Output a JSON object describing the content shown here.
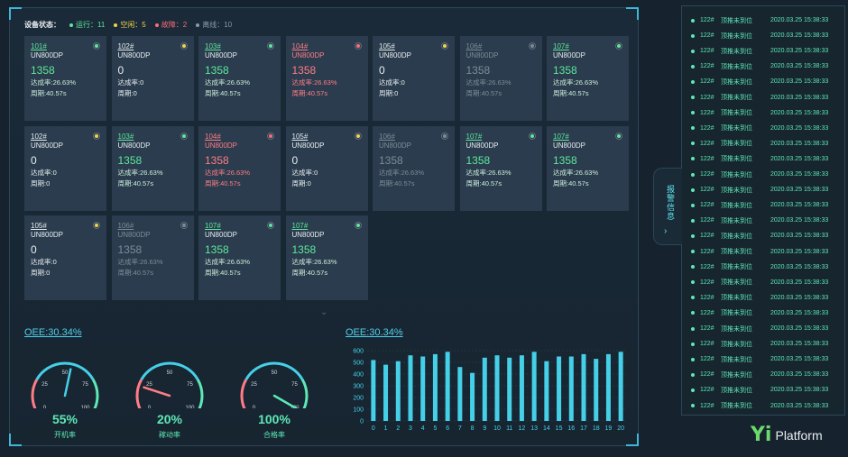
{
  "status": {
    "title": "设备状态：",
    "items": [
      {
        "label": "运行：11",
        "color": "#5ee89c"
      },
      {
        "label": "空闲：5",
        "color": "#f2d34a"
      },
      {
        "label": "故障：2",
        "color": "#ff6b7a"
      },
      {
        "label": "离线：10",
        "color": "#8a9aa6"
      }
    ]
  },
  "cards": [
    {
      "id": "101#",
      "model": "UN800DP",
      "count": "1358",
      "rate": "达成率:26.63%",
      "cycle": "周期:40.57s",
      "state": "green"
    },
    {
      "id": "102#",
      "model": "UN800DP",
      "count": "0",
      "rate": "达成率:0",
      "cycle": "周期:0",
      "state": "yellow"
    },
    {
      "id": "103#",
      "model": "UN800DP",
      "count": "1358",
      "rate": "达成率:26.63%",
      "cycle": "周期:40.57s",
      "state": "green"
    },
    {
      "id": "104#",
      "model": "UN800DP",
      "count": "1358",
      "rate": "达成率:26.63%",
      "cycle": "周期:40.57s",
      "state": "red"
    },
    {
      "id": "105#",
      "model": "UN800DP",
      "count": "0",
      "rate": "达成率:0",
      "cycle": "周期:0",
      "state": "yellow"
    },
    {
      "id": "106#",
      "model": "UN800DP",
      "count": "1358",
      "rate": "达成率:26.63%",
      "cycle": "周期:40.57s",
      "state": "gray"
    },
    {
      "id": "107#",
      "model": "UN800DP",
      "count": "1358",
      "rate": "达成率:26.63%",
      "cycle": "周期:40.57s",
      "state": "green"
    },
    {
      "id": "102#",
      "model": "UN800DP",
      "count": "0",
      "rate": "达成率:0",
      "cycle": "周期:0",
      "state": "yellow"
    },
    {
      "id": "103#",
      "model": "UN800DP",
      "count": "1358",
      "rate": "达成率:26.63%",
      "cycle": "周期:40.57s",
      "state": "green"
    },
    {
      "id": "104#",
      "model": "UN800DP",
      "count": "1358",
      "rate": "达成率:26.63%",
      "cycle": "周期:40.57s",
      "state": "red"
    },
    {
      "id": "105#",
      "model": "UN800DP",
      "count": "0",
      "rate": "达成率:0",
      "cycle": "周期:0",
      "state": "yellow"
    },
    {
      "id": "106#",
      "model": "UN800DP",
      "count": "1358",
      "rate": "达成率:26.63%",
      "cycle": "周期:40.57s",
      "state": "gray"
    },
    {
      "id": "107#",
      "model": "UN800DP",
      "count": "1358",
      "rate": "达成率:26.63%",
      "cycle": "周期:40.57s",
      "state": "green"
    },
    {
      "id": "107#",
      "model": "UN800DP",
      "count": "1358",
      "rate": "达成率:26.63%",
      "cycle": "周期:40.57s",
      "state": "green"
    },
    {
      "id": "105#",
      "model": "UN800DP",
      "count": "0",
      "rate": "达成率:0",
      "cycle": "周期:0",
      "state": "yellow"
    },
    {
      "id": "106#",
      "model": "UN800DP",
      "count": "1358",
      "rate": "达成率:26.63%",
      "cycle": "周期:40.57s",
      "state": "gray"
    },
    {
      "id": "107#",
      "model": "UN800DP",
      "count": "1358",
      "rate": "达成率:26.63%",
      "cycle": "周期:40.57s",
      "state": "green"
    },
    {
      "id": "107#",
      "model": "UN800DP",
      "count": "1358",
      "rate": "达成率:26.63%",
      "cycle": "周期:40.57s",
      "state": "green"
    }
  ],
  "colors": {
    "green": "#5ee89c",
    "yellow": "#f2d34a",
    "red": "#ff6b7a",
    "gray": "#7d8c98",
    "accent": "#4fd0ea"
  },
  "scroll_more_icon": "double-chevron-down-icon",
  "oee_left": "OEE:30.34%",
  "oee_right": "OEE:30.34%",
  "gauges": [
    {
      "value": 55,
      "pct": "55%",
      "label": "开机率",
      "ticks": [
        "0",
        "25",
        "50",
        "75",
        "100"
      ]
    },
    {
      "value": 20,
      "pct": "20%",
      "label": "稼动率",
      "ticks": [
        "0",
        "25",
        "50",
        "75",
        "100"
      ]
    },
    {
      "value": 100,
      "pct": "100%",
      "label": "合格率",
      "ticks": [
        "0",
        "25",
        "50",
        "75",
        "100"
      ]
    }
  ],
  "chart_data": {
    "type": "bar",
    "title": "",
    "xlabel": "",
    "ylabel": "",
    "categories": [
      "0",
      "1",
      "2",
      "3",
      "4",
      "5",
      "6",
      "7",
      "8",
      "9",
      "10",
      "11",
      "12",
      "13",
      "14",
      "15",
      "16",
      "17",
      "18",
      "19",
      "20"
    ],
    "values": [
      520,
      480,
      510,
      560,
      550,
      570,
      590,
      460,
      410,
      540,
      560,
      540,
      560,
      590,
      510,
      550,
      550,
      570,
      530,
      570,
      590
    ],
    "ylim": [
      0,
      600
    ],
    "yticks": [
      "0",
      "100",
      "200",
      "300",
      "400",
      "500",
      "600"
    ],
    "color": "#45d0e8",
    "grid": true
  },
  "side": {
    "tab_label": "报警信息",
    "tab_arrow": "›",
    "rows": [
      {
        "no": "122#",
        "msg": "顶推未到位",
        "time": "2020.03.25 15:38:33"
      },
      {
        "no": "122#",
        "msg": "顶推未到位",
        "time": "2020.03.25 15:38:33"
      },
      {
        "no": "122#",
        "msg": "顶推未到位",
        "time": "2020.03.25 15:38:33"
      },
      {
        "no": "122#",
        "msg": "顶推未到位",
        "time": "2020.03.25 15:38:33"
      },
      {
        "no": "122#",
        "msg": "顶推未到位",
        "time": "2020.03.25 15:38:33"
      },
      {
        "no": "122#",
        "msg": "顶推未到位",
        "time": "2020.03.25 15:38:33"
      },
      {
        "no": "122#",
        "msg": "顶推未到位",
        "time": "2020.03.25 15:38:33"
      },
      {
        "no": "122#",
        "msg": "顶推未到位",
        "time": "2020.03.25 15:38:33"
      },
      {
        "no": "122#",
        "msg": "顶推未到位",
        "time": "2020.03.25 15:38:33"
      },
      {
        "no": "122#",
        "msg": "顶推未到位",
        "time": "2020.03.25 15:38:33"
      },
      {
        "no": "122#",
        "msg": "顶推未到位",
        "time": "2020.03.25 15:38:33"
      },
      {
        "no": "122#",
        "msg": "顶推未到位",
        "time": "2020.03.25 15:38:33"
      },
      {
        "no": "122#",
        "msg": "顶推未到位",
        "time": "2020.03.25 15:38:33"
      },
      {
        "no": "122#",
        "msg": "顶推未到位",
        "time": "2020.03.25 15:38:33"
      },
      {
        "no": "122#",
        "msg": "顶推未到位",
        "time": "2020.03.25 15:38:33"
      },
      {
        "no": "122#",
        "msg": "顶推未到位",
        "time": "2020.03.25 15:38:33"
      },
      {
        "no": "122#",
        "msg": "顶推未到位",
        "time": "2020.03.25 15:38:33"
      },
      {
        "no": "122#",
        "msg": "顶推未到位",
        "time": "2020.03.25 15:38:33"
      },
      {
        "no": "122#",
        "msg": "顶推未到位",
        "time": "2020.03.25 15:38:33"
      },
      {
        "no": "122#",
        "msg": "顶推未到位",
        "time": "2020.03.25 15:38:33"
      },
      {
        "no": "122#",
        "msg": "顶推未到位",
        "time": "2020.03.25 15:38:33"
      },
      {
        "no": "122#",
        "msg": "顶推未到位",
        "time": "2020.03.25 15:38:33"
      },
      {
        "no": "122#",
        "msg": "顶推未到位",
        "time": "2020.03.25 15:38:33"
      },
      {
        "no": "122#",
        "msg": "顶推未到位",
        "time": "2020.03.25 15:38:33"
      },
      {
        "no": "122#",
        "msg": "顶推未到位",
        "time": "2020.03.25 15:38:33"
      },
      {
        "no": "122#",
        "msg": "顶推未到位",
        "time": "2020.03.25 15:38:33"
      }
    ]
  },
  "logo": {
    "mark": "Yi",
    "name": "Platform"
  }
}
